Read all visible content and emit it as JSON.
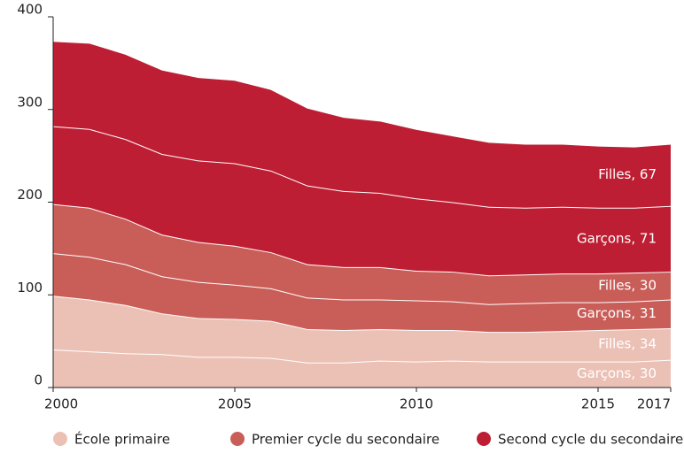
{
  "chart_data": {
    "type": "stacked_area",
    "x": [
      2000,
      2001,
      2002,
      2003,
      2004,
      2005,
      2006,
      2007,
      2008,
      2009,
      2010,
      2011,
      2012,
      2013,
      2014,
      2015,
      2016,
      2017
    ],
    "xlim": [
      2000,
      2017
    ],
    "xticks": [
      2000,
      2005,
      2010,
      2015,
      2017
    ],
    "ylim": [
      0,
      400
    ],
    "yticks": [
      0,
      100,
      200,
      300,
      400
    ],
    "legend": [
      {
        "name": "École primaire",
        "color": "#ecc1b5"
      },
      {
        "name": "Premier cycle du secondaire",
        "color": "#c95e59"
      },
      {
        "name": "Second cycle du secondaire",
        "color": "#be1e33"
      }
    ],
    "series": [
      {
        "group": 0,
        "end_label": "Garçons, 30",
        "values": [
          41,
          39,
          37,
          36,
          33,
          33,
          32,
          27,
          27,
          29,
          28,
          29,
          28,
          28,
          28,
          28,
          28,
          30
        ]
      },
      {
        "group": 0,
        "end_label": "Filles, 34",
        "values": [
          58,
          56,
          52,
          44,
          42,
          41,
          40,
          36,
          35,
          34,
          34,
          33,
          32,
          32,
          33,
          34,
          35,
          34
        ]
      },
      {
        "group": 1,
        "end_label": "Garçons, 31",
        "values": [
          46,
          46,
          44,
          40,
          39,
          37,
          35,
          34,
          33,
          32,
          32,
          31,
          30,
          31,
          31,
          30,
          30,
          31
        ]
      },
      {
        "group": 1,
        "end_label": "Filles, 30",
        "values": [
          53,
          53,
          49,
          45,
          43,
          42,
          39,
          36,
          35,
          35,
          32,
          32,
          31,
          31,
          31,
          31,
          31,
          30
        ]
      },
      {
        "group": 2,
        "end_label": "Garçons, 71",
        "values": [
          84,
          85,
          86,
          87,
          88,
          89,
          88,
          85,
          82,
          80,
          78,
          75,
          74,
          72,
          72,
          71,
          70,
          71
        ]
      },
      {
        "group": 2,
        "end_label": "Filles, 67",
        "values": [
          92,
          93,
          92,
          91,
          90,
          90,
          88,
          84,
          80,
          78,
          75,
          72,
          70,
          69,
          68,
          67,
          66,
          67
        ]
      }
    ]
  }
}
